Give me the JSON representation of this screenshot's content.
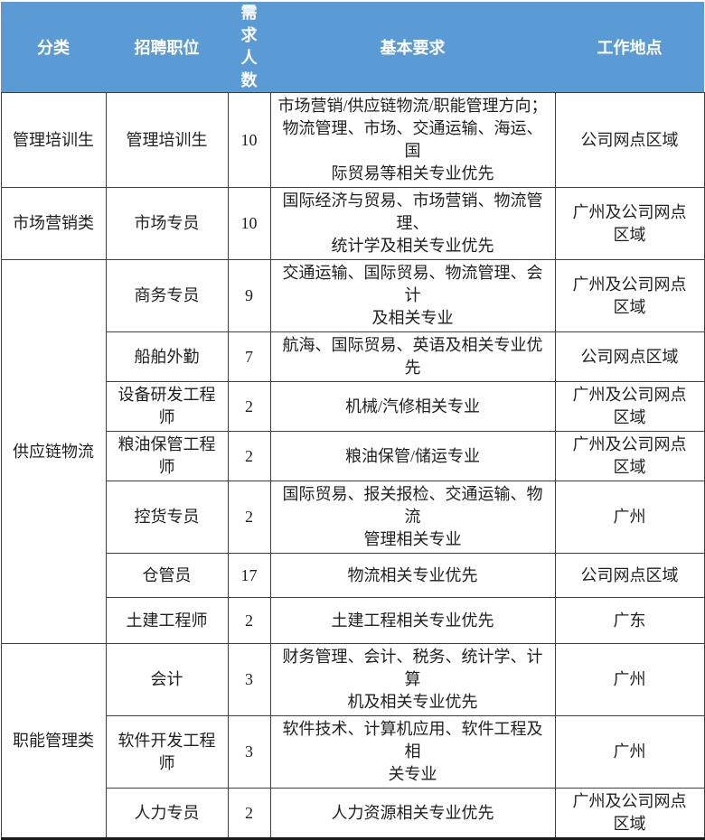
{
  "table": {
    "headers": [
      {
        "key": "category",
        "label": "分类"
      },
      {
        "key": "position",
        "label": "招聘职位"
      },
      {
        "key": "headcount",
        "label": "需求人数",
        "vertical": true
      },
      {
        "key": "requirements",
        "label": "基本要求"
      },
      {
        "key": "location",
        "label": "工作地点"
      }
    ],
    "groups": [
      {
        "category": "管理培训生",
        "rows": [
          {
            "position": "管理培训生",
            "headcount": "10",
            "requirements": "市场营销/供应链物流/职能管理方向；\n物流管理、市场、交通运输、海运、国\n际贸易等相关专业优先",
            "location": "公司网点区域"
          }
        ]
      },
      {
        "category": "市场营销类",
        "rows": [
          {
            "position": "市场专员",
            "headcount": "10",
            "requirements": "国际经济与贸易、市场营销、物流管理、\n统计学及相关专业优先",
            "location": "广州及公司网点\n区域"
          }
        ]
      },
      {
        "category": "供应链物流",
        "rows": [
          {
            "position": "商务专员",
            "headcount": "9",
            "requirements": "交通运输、国际贸易、物流管理、会计\n及相关专业",
            "location": "广州及公司网点\n区域"
          },
          {
            "position": "船舶外勤",
            "headcount": "7",
            "requirements": "航海、国际贸易、英语及相关专业优先",
            "location": "公司网点区域"
          },
          {
            "position": "设备研发工程\n师",
            "headcount": "2",
            "requirements": "机械/汽修相关专业",
            "location": "广州及公司网点\n区域"
          },
          {
            "position": "粮油保管工程\n师",
            "headcount": "2",
            "requirements": "粮油保管/储运专业",
            "location": "广州及公司网点\n区域"
          },
          {
            "position": "控货专员",
            "headcount": "2",
            "requirements": "国际贸易、报关报检、交通运输、物流\n管理相关专业",
            "location": "广州"
          },
          {
            "position": "仓管员",
            "headcount": "17",
            "requirements": "物流相关专业优先",
            "location": "公司网点区域"
          },
          {
            "position": "土建工程师",
            "headcount": "2",
            "requirements": "土建工程相关专业优先",
            "location": "广东"
          }
        ]
      },
      {
        "category": "职能管理类",
        "rows": [
          {
            "position": "会计",
            "headcount": "3",
            "requirements": "财务管理、会计、税务、统计学、计算\n机及相关专业优先",
            "location": "广州"
          },
          {
            "position": "软件开发工程\n师",
            "headcount": "3",
            "requirements": "软件技术、计算机应用、软件工程及相\n关专业",
            "location": "广州"
          },
          {
            "position": "人力专员",
            "headcount": "2",
            "requirements": "人力资源相关专业优先",
            "location": "广州及公司网点\n区域"
          }
        ]
      }
    ]
  },
  "colors": {
    "header_bg": "#5B9BD5",
    "header_text": "#FFFFFF",
    "border": "#3F3F3F",
    "body_text": "#1F1F1F"
  }
}
